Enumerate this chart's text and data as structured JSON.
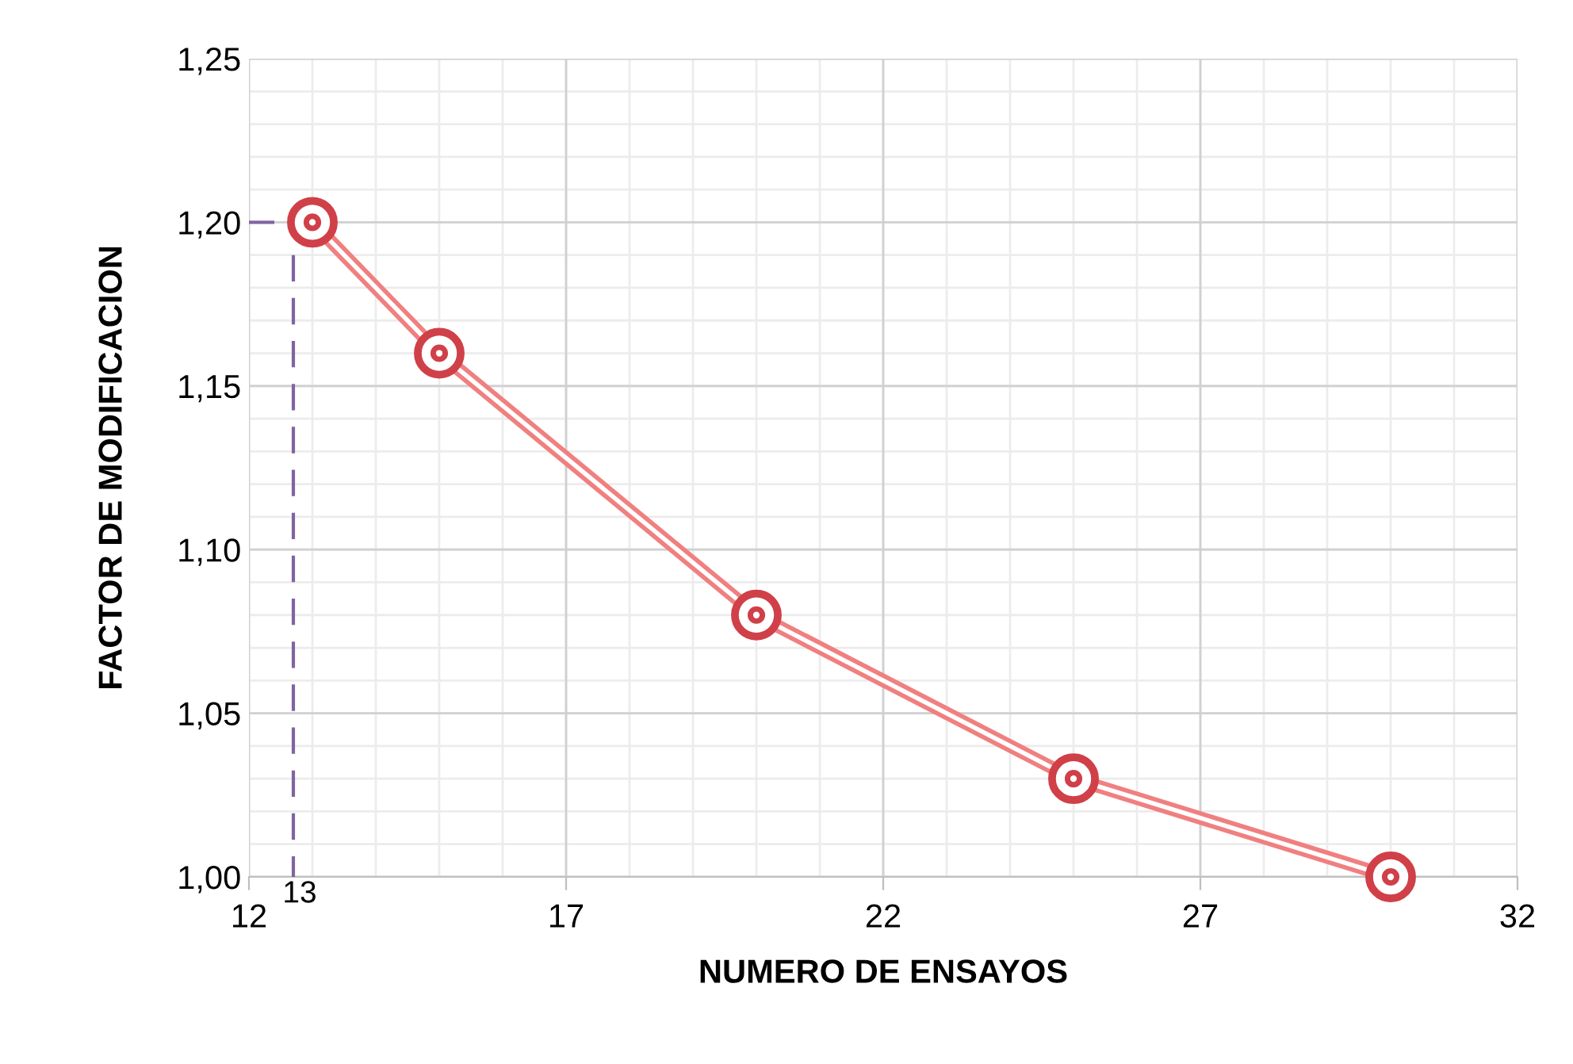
{
  "chart_data": {
    "type": "line",
    "xlabel": "NUMERO DE ENSAYOS",
    "ylabel": "FACTOR DE MODIFICACION",
    "x": [
      13,
      15,
      20,
      25,
      30
    ],
    "series": [
      {
        "color": "#f08080",
        "values": [
          1.2,
          1.16,
          1.08,
          1.03,
          1.0
        ],
        "marker": "circle",
        "line_style": "solid"
      },
      {
        "color": "#8064a2",
        "x": [
          12,
          12.4
        ],
        "values": [
          1.2,
          1.2
        ],
        "marker": "none",
        "line_style": "dashed"
      },
      {
        "color": "#8064a2",
        "x": [
          12.7,
          12.7
        ],
        "values": [
          1.19,
          1.0
        ],
        "marker": "none",
        "line_style": "dashed"
      }
    ],
    "xlim": [
      12,
      32
    ],
    "xticks": [
      12,
      17,
      22,
      27,
      32
    ],
    "ylim": [
      1.0,
      1.25
    ],
    "yticks": [
      {
        "value": 1.0,
        "label": "1,00"
      },
      {
        "value": 1.05,
        "label": "1,05"
      },
      {
        "value": 1.1,
        "label": "1,10"
      },
      {
        "value": 1.15,
        "label": "1,15"
      },
      {
        "value": 1.2,
        "label": "1,20"
      },
      {
        "value": 1.25,
        "label": "1,25"
      }
    ],
    "annotations": [
      "13"
    ],
    "grid": true
  }
}
